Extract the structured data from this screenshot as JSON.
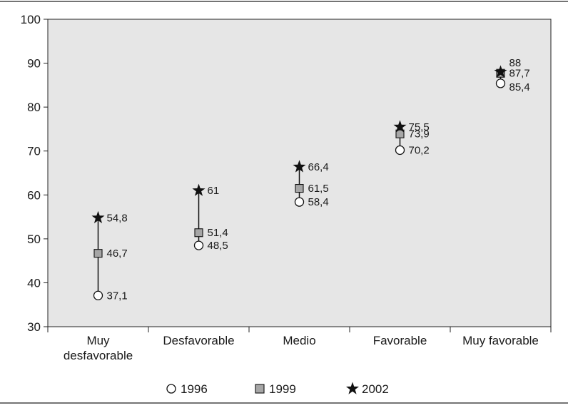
{
  "colors": {
    "plot_background": "#e6e6e6",
    "marker_1999": "#a6a6a6",
    "marker_2002": "#111111",
    "marker_1996_fill": "#ffffff",
    "line": "#111111"
  },
  "chart_data": {
    "type": "scatter",
    "title": "",
    "xlabel": "",
    "ylabel": "",
    "ylim": [
      30,
      100
    ],
    "yticks": [
      30,
      40,
      50,
      60,
      70,
      80,
      90,
      100
    ],
    "grid": false,
    "legend_position": "bottom",
    "categories": [
      [
        "Muy",
        "desfavorable"
      ],
      [
        "Desfavorable"
      ],
      [
        "Medio"
      ],
      [
        "Favorable"
      ],
      [
        "Muy favorable"
      ]
    ],
    "series": [
      {
        "name": "1996",
        "marker": "circle",
        "values": [
          37.1,
          48.5,
          58.4,
          70.2,
          85.4
        ],
        "labels": [
          "37,1",
          "48,5",
          "58,4",
          "70,2",
          "85,4"
        ]
      },
      {
        "name": "1999",
        "marker": "square",
        "values": [
          46.7,
          51.4,
          61.5,
          73.9,
          87.7
        ],
        "labels": [
          "46,7",
          "51,4",
          "61,5",
          "73,9",
          "87,7"
        ]
      },
      {
        "name": "2002",
        "marker": "star",
        "values": [
          54.8,
          61,
          66.4,
          75.5,
          88
        ],
        "labels": [
          "54,8",
          "61",
          "66,4",
          "75,5",
          "88"
        ]
      }
    ]
  }
}
